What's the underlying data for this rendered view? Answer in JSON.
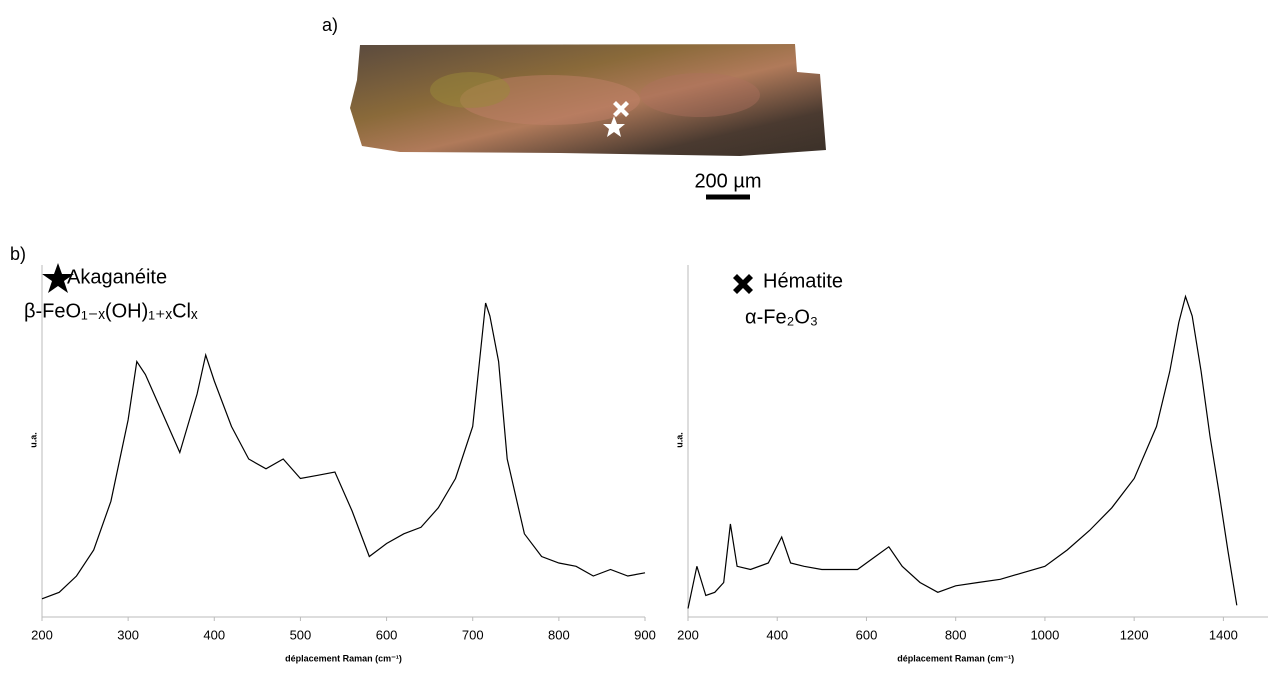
{
  "figure": {
    "panel_a": "a)",
    "panel_b": "b)",
    "scale_bar": "200 µm"
  },
  "chart_data": [
    {
      "type": "line",
      "title": "Akaganéite",
      "subtitle": "β-FeO₁₋ₓ(OH)₁₊ₓClₓ",
      "x_label": "déplacement Raman (cm⁻¹)",
      "y_label": "u.a.",
      "color": "#000000",
      "x": [
        200,
        220,
        240,
        260,
        280,
        300,
        310,
        320,
        340,
        360,
        380,
        390,
        400,
        420,
        440,
        460,
        480,
        500,
        520,
        540,
        560,
        580,
        600,
        620,
        640,
        660,
        680,
        700,
        715,
        720,
        730,
        740,
        760,
        780,
        800,
        820,
        840,
        860,
        880,
        900
      ],
      "series": [
        {
          "name": "Akaganéite",
          "color": "#000000",
          "values": [
            5,
            7,
            12,
            20,
            35,
            60,
            78,
            74,
            62,
            50,
            68,
            80,
            72,
            58,
            48,
            45,
            48,
            42,
            43,
            44,
            32,
            18,
            22,
            25,
            27,
            33,
            42,
            58,
            96,
            92,
            78,
            48,
            25,
            18,
            16,
            15,
            12,
            14,
            12,
            13
          ]
        }
      ],
      "xlim": [
        200,
        900
      ],
      "xticks": [
        200,
        300,
        400,
        500,
        600,
        700,
        800,
        900
      ],
      "ylim": [
        0,
        100
      ]
    },
    {
      "type": "line",
      "title": "Hématite",
      "subtitle": "α-Fe₂O₃",
      "x_label": "déplacement Raman (cm⁻¹)",
      "y_label": "u.a.",
      "color": "#000000",
      "x": [
        200,
        220,
        240,
        260,
        280,
        295,
        310,
        340,
        380,
        410,
        430,
        460,
        500,
        540,
        580,
        620,
        650,
        680,
        720,
        760,
        800,
        850,
        900,
        950,
        1000,
        1050,
        1100,
        1150,
        1200,
        1250,
        1280,
        1300,
        1315,
        1330,
        1350,
        1370,
        1390,
        1410,
        1430
      ],
      "series": [
        {
          "name": "Hématite",
          "color": "#000000",
          "values": [
            2,
            15,
            6,
            7,
            10,
            28,
            15,
            14,
            16,
            24,
            16,
            15,
            14,
            14,
            14,
            18,
            21,
            15,
            10,
            7,
            9,
            10,
            11,
            13,
            15,
            20,
            26,
            33,
            42,
            58,
            75,
            90,
            98,
            92,
            75,
            55,
            38,
            20,
            3
          ]
        }
      ],
      "xlim": [
        200,
        1500
      ],
      "xticks": [
        200,
        400,
        600,
        800,
        1000,
        1200,
        1400
      ],
      "ylim": [
        0,
        100
      ]
    }
  ]
}
